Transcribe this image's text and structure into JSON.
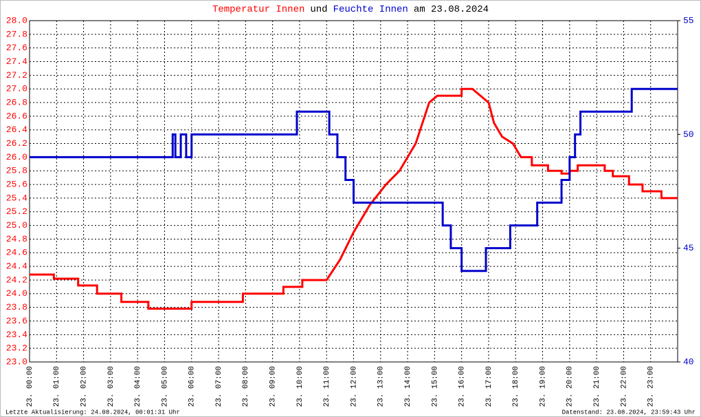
{
  "chart_data": {
    "type": "line",
    "title_parts": [
      {
        "text": "Temperatur Innen",
        "color": "#ff0000"
      },
      {
        "text": "und",
        "color": "#000000"
      },
      {
        "text": "Feuchte Innen",
        "color": "#0000cc"
      },
      {
        "text": "am 23.08.2024",
        "color": "#000000"
      }
    ],
    "footer_left": "Letzte Aktualisierung: 24.08.2024, 00:01:31 Uhr",
    "footer_right": "Datenstand: 23.08.2024, 23:59:43 Uhr",
    "grid": true,
    "xlim": [
      0,
      24
    ],
    "xticks": [
      {
        "value": 0,
        "label": "23. 00:00"
      },
      {
        "value": 1,
        "label": "23. 01:00"
      },
      {
        "value": 2,
        "label": "23. 02:00"
      },
      {
        "value": 3,
        "label": "23. 03:00"
      },
      {
        "value": 4,
        "label": "23. 04:00"
      },
      {
        "value": 5,
        "label": "23. 05:00"
      },
      {
        "value": 6,
        "label": "23. 06:00"
      },
      {
        "value": 7,
        "label": "23. 07:00"
      },
      {
        "value": 8,
        "label": "23. 08:00"
      },
      {
        "value": 9,
        "label": "23. 09:00"
      },
      {
        "value": 10,
        "label": "23. 10:00"
      },
      {
        "value": 11,
        "label": "23. 11:00"
      },
      {
        "value": 12,
        "label": "23. 12:00"
      },
      {
        "value": 13,
        "label": "23. 13:00"
      },
      {
        "value": 14,
        "label": "23. 14:00"
      },
      {
        "value": 15,
        "label": "23. 15:00"
      },
      {
        "value": 16,
        "label": "23. 16:00"
      },
      {
        "value": 17,
        "label": "23. 17:00"
      },
      {
        "value": 18,
        "label": "23. 18:00"
      },
      {
        "value": 19,
        "label": "23. 19:00"
      },
      {
        "value": 20,
        "label": "23. 20:00"
      },
      {
        "value": 21,
        "label": "23. 21:00"
      },
      {
        "value": 22,
        "label": "23. 22:00"
      },
      {
        "value": 23,
        "label": "23. 23:00"
      }
    ],
    "ylim": [
      23.0,
      28.0
    ],
    "yticks": [
      {
        "value": 23.0,
        "label": "23.0"
      },
      {
        "value": 23.2,
        "label": "23.2"
      },
      {
        "value": 23.4,
        "label": "23.4"
      },
      {
        "value": 23.6,
        "label": "23.6"
      },
      {
        "value": 23.8,
        "label": "23.8"
      },
      {
        "value": 24.0,
        "label": "24.0"
      },
      {
        "value": 24.2,
        "label": "24.2"
      },
      {
        "value": 24.4,
        "label": "24.4"
      },
      {
        "value": 24.6,
        "label": "24.6"
      },
      {
        "value": 24.8,
        "label": "24.8"
      },
      {
        "value": 25.0,
        "label": "25.0"
      },
      {
        "value": 25.2,
        "label": "25.2"
      },
      {
        "value": 25.4,
        "label": "25.4"
      },
      {
        "value": 25.6,
        "label": "25.6"
      },
      {
        "value": 25.8,
        "label": "25.8"
      },
      {
        "value": 26.0,
        "label": "26.0"
      },
      {
        "value": 26.2,
        "label": "26.2"
      },
      {
        "value": 26.4,
        "label": "26.4"
      },
      {
        "value": 26.6,
        "label": "26.6"
      },
      {
        "value": 26.8,
        "label": "26.8"
      },
      {
        "value": 27.0,
        "label": "27.0"
      },
      {
        "value": 27.2,
        "label": "27.2"
      },
      {
        "value": 27.4,
        "label": "27.4"
      },
      {
        "value": 27.6,
        "label": "27.6"
      },
      {
        "value": 27.8,
        "label": "27.8"
      },
      {
        "value": 28.0,
        "label": "28.0"
      }
    ],
    "ycolor": "#ff0000",
    "y2lim": [
      40,
      55
    ],
    "y2ticks": [
      40,
      45,
      50,
      55
    ],
    "y2color": "#0000cc",
    "series": [
      {
        "name": "Temperatur Innen",
        "color": "#ff0000",
        "x": [
          0,
          0.9,
          0.9,
          1.8,
          1.8,
          2.5,
          2.5,
          3.4,
          3.4,
          4.4,
          4.4,
          6.0,
          6.0,
          7.9,
          7.9,
          9.4,
          9.4,
          10.1,
          10.1,
          11.0,
          11.5,
          12.0,
          12.6,
          13.2,
          13.7,
          14.3,
          14.8,
          15.1,
          16.0,
          16.0,
          16.4,
          17.0,
          17.2,
          17.5,
          17.9,
          18.2,
          18.6,
          18.6,
          19.2,
          19.2,
          19.7,
          19.7,
          20.0,
          20.0,
          20.3,
          20.3,
          21.3,
          21.3,
          21.6,
          21.6,
          22.2,
          22.2,
          22.7,
          22.7,
          23.4,
          23.4,
          24.0
        ],
        "values": [
          24.28,
          24.28,
          24.22,
          24.22,
          24.12,
          24.12,
          24.0,
          24.0,
          23.88,
          23.88,
          23.78,
          23.78,
          23.88,
          23.88,
          24.0,
          24.0,
          24.1,
          24.1,
          24.2,
          24.2,
          24.5,
          24.9,
          25.3,
          25.6,
          25.8,
          26.2,
          26.8,
          26.9,
          26.9,
          27.0,
          27.0,
          26.8,
          26.5,
          26.3,
          26.2,
          26.0,
          26.0,
          25.88,
          25.88,
          25.8,
          25.8,
          25.76,
          25.76,
          25.8,
          25.8,
          25.88,
          25.88,
          25.8,
          25.8,
          25.72,
          25.72,
          25.6,
          25.6,
          25.5,
          25.5,
          25.4,
          25.4
        ]
      },
      {
        "name": "Feuchte Innen",
        "color": "#0000cc",
        "axis": "y2",
        "x": [
          0,
          5.3,
          5.3,
          5.4,
          5.4,
          5.6,
          5.6,
          5.8,
          5.8,
          6.0,
          6.0,
          9.9,
          9.9,
          11.1,
          11.1,
          11.4,
          11.4,
          11.7,
          11.7,
          12.0,
          12.0,
          15.3,
          15.3,
          15.6,
          15.6,
          16.0,
          16.0,
          16.9,
          16.9,
          17.8,
          17.8,
          18.8,
          18.8,
          19.7,
          19.7,
          20.0,
          20.0,
          20.2,
          20.2,
          20.4,
          20.4,
          22.3,
          22.3,
          24.0
        ],
        "values": [
          49,
          49,
          50,
          50,
          49,
          49,
          50,
          50,
          49,
          49,
          50,
          50,
          51,
          51,
          50,
          50,
          49,
          49,
          48,
          48,
          47,
          47,
          46,
          46,
          45,
          45,
          44,
          44,
          45,
          45,
          46,
          46,
          47,
          47,
          48,
          48,
          49,
          49,
          50,
          50,
          51,
          51,
          52,
          52
        ]
      }
    ]
  }
}
